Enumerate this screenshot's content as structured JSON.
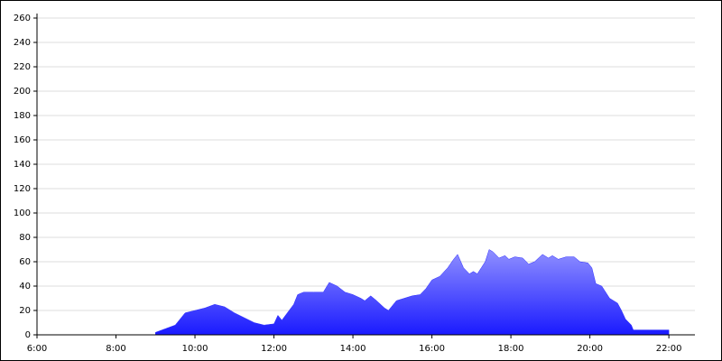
{
  "chart_data": {
    "type": "area",
    "x": [
      9.0,
      9.25,
      9.5,
      9.75,
      10.0,
      10.25,
      10.5,
      10.75,
      11.0,
      11.25,
      11.5,
      11.75,
      12.0,
      12.1,
      12.2,
      12.5,
      12.6,
      12.75,
      13.0,
      13.25,
      13.4,
      13.6,
      13.8,
      14.0,
      14.2,
      14.3,
      14.45,
      14.6,
      14.8,
      14.9,
      15.1,
      15.3,
      15.5,
      15.7,
      15.85,
      16.0,
      16.2,
      16.4,
      16.55,
      16.65,
      16.8,
      16.95,
      17.05,
      17.15,
      17.25,
      17.35,
      17.45,
      17.55,
      17.7,
      17.85,
      17.95,
      18.1,
      18.3,
      18.45,
      18.6,
      18.8,
      18.95,
      19.05,
      19.2,
      19.4,
      19.6,
      19.75,
      19.95,
      20.05,
      20.15,
      20.3,
      20.5,
      20.6,
      20.7,
      20.8,
      20.9,
      21.05,
      21.1,
      21.5,
      22.0
    ],
    "values": [
      2,
      5,
      8,
      18,
      20,
      22,
      25,
      23,
      18,
      14,
      10,
      8,
      9,
      16,
      12,
      25,
      33,
      35,
      35,
      35,
      43,
      40,
      35,
      33,
      30,
      28,
      32,
      28,
      22,
      20,
      28,
      30,
      32,
      33,
      38,
      45,
      48,
      55,
      62,
      66,
      55,
      50,
      52,
      50,
      55,
      60,
      70,
      68,
      63,
      65,
      62,
      64,
      63,
      58,
      60,
      66,
      63,
      65,
      62,
      64,
      64,
      60,
      59,
      55,
      42,
      40,
      30,
      28,
      26,
      20,
      13,
      8,
      4,
      4,
      4
    ],
    "color": "#2a2aff",
    "xlim": [
      6,
      22.66
    ],
    "xticks": [
      {
        "value": 6,
        "label": "6:00"
      },
      {
        "value": 8,
        "label": "8:00"
      },
      {
        "value": 10,
        "label": "10:00"
      },
      {
        "value": 12,
        "label": "12:00"
      },
      {
        "value": 14,
        "label": "14:00"
      },
      {
        "value": 16,
        "label": "16:00"
      },
      {
        "value": 18,
        "label": "18:00"
      },
      {
        "value": 20,
        "label": "20:00"
      },
      {
        "value": 22,
        "label": "22:00"
      }
    ],
    "ylim": [
      0,
      260
    ],
    "yticks": [
      0,
      20,
      40,
      60,
      80,
      100,
      120,
      140,
      160,
      180,
      200,
      220,
      240,
      260
    ],
    "grid": true
  }
}
